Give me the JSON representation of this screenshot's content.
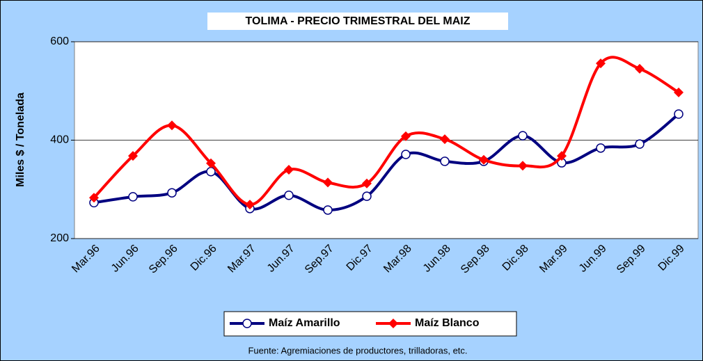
{
  "chart_data": {
    "type": "line",
    "title": "TOLIMA - PRECIO TRIMESTRAL DEL MAIZ",
    "y_label": "Miles $ / Tonelada",
    "source": "Fuente: Agremiaciones de productores, trilladoras, etc.",
    "categories": [
      "Mar.96",
      "Jun.96",
      "Sep.96",
      "Dic.96",
      "Mar.97",
      "Jun.97",
      "Sep.97",
      "Dic.97",
      "Mar.98",
      "Jun.98",
      "Sep.98",
      "Dic.98",
      "Mar.99",
      "Jun.99",
      "Sep.99",
      "Dic.99"
    ],
    "series": [
      {
        "name": "Maíz Amarillo",
        "color": "#000080",
        "marker": "circle",
        "values": [
          273,
          285,
          293,
          336,
          261,
          288,
          258,
          286,
          371,
          357,
          357,
          409,
          354,
          384,
          392,
          453
        ]
      },
      {
        "name": "Maíz Blanco",
        "color": "#ff0000",
        "marker": "diamond",
        "values": [
          283,
          368,
          430,
          353,
          269,
          340,
          314,
          312,
          408,
          402,
          360,
          348,
          368,
          556,
          545,
          497
        ]
      }
    ],
    "ylim": [
      200,
      600
    ],
    "yticks": [
      200,
      400,
      600
    ],
    "grid": true,
    "smooth": true,
    "legend": "bottom"
  }
}
